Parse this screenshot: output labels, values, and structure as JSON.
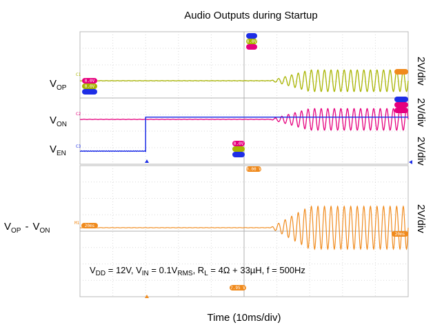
{
  "chart_data": [
    {
      "type": "line",
      "title": "Audio Outputs during Startup",
      "xlabel": "Time (10ms/div)",
      "x_range_div": [
        0,
        10
      ],
      "grid": true,
      "upper_panel": {
        "series": [
          {
            "name": "VOP",
            "label_main": "V",
            "label_sub": "OP",
            "scale": "2V/div",
            "color": "#a8b400",
            "enable_time_div": 5.8,
            "amplitude_div": 1.3,
            "cycles_per_div": 5,
            "segments": [
              {
                "x": [
                  0,
                  5.8
                ],
                "state": "flat"
              },
              {
                "x": [
                  5.8,
                  10
                ],
                "state": "sine"
              }
            ]
          },
          {
            "name": "VON",
            "label_main": "V",
            "label_sub": "ON",
            "scale": "2V/div",
            "color": "#e6007e",
            "enable_time_div": 5.8,
            "amplitude_div": 1.3,
            "cycles_per_div": 5,
            "segments": [
              {
                "x": [
                  0,
                  5.8
                ],
                "state": "flat"
              },
              {
                "x": [
                  5.8,
                  10
                ],
                "state": "sine (antiphase)"
              }
            ]
          },
          {
            "name": "VEN",
            "label_main": "V",
            "label_sub": "EN",
            "scale": "2V/div",
            "color": "#1e2ee6",
            "step_time_div": 2,
            "step_high_div": 2.05,
            "segments": [
              {
                "x": [
                  0,
                  2
                ],
                "state": "low"
              },
              {
                "x": [
                  2,
                  10
                ],
                "state": "high"
              }
            ]
          }
        ]
      },
      "lower_panel": {
        "series": [
          {
            "name": "VOP - VON",
            "label_a_main": "V",
            "label_a_sub": "OP",
            "label_sep": "-",
            "label_b_main": "V",
            "label_b_sub": "ON",
            "scale": "2V/div",
            "color": "#f08a1c",
            "enable_time_div": 5.8,
            "amplitude_div": 2.6,
            "cycles_per_div": 5,
            "segments": [
              {
                "x": [
                  0,
                  5.8
                ],
                "state": "flat"
              },
              {
                "x": [
                  5.8,
                  10
                ],
                "state": "sine"
              }
            ]
          }
        ],
        "conditions": {
          "vdd_main": "V",
          "vdd_sub": "DD",
          "vdd_val": " = 12V, ",
          "vin_main": "V",
          "vin_sub": "IN",
          "vin_val": " = 0.1V",
          "vin_unit_sub": "RMS",
          "rl_main": ", R",
          "rl_sub": "L",
          "rl_val": " = 4Ω + 33µH, f = 500Hz"
        }
      },
      "marker_text": {
        "c1": "C1",
        "c2": "C2",
        "c3": "C3",
        "m1": "M1",
        "tag_a": "0.0V",
        "tag_b": "0.0V",
        "tag_c": "0.0V",
        "tag_d": "0.0V",
        "tag_e": "20ms",
        "tag_f": "0.00 V",
        "tag_g": "7.95 V",
        "tag_h": "20ms"
      }
    }
  ]
}
